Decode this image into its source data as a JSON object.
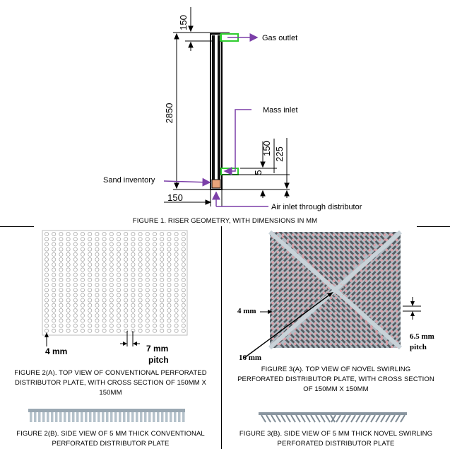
{
  "figure1": {
    "dim_top": "150",
    "dim_height": "2850",
    "dim_bottom_width": "150",
    "dim_150_right": "150",
    "dim_225_right": "225",
    "dim_5_right": "5",
    "label_gas_outlet": "Gas outlet",
    "label_mass_inlet": "Mass inlet",
    "label_sand_inventory": "Sand inventory",
    "label_air_inlet": "Air inlet through distributor",
    "caption": "FIGURE 1. RISER GEOMETRY, WITH DIMENSIONS IN MM"
  },
  "figure2a": {
    "label_4mm": "4 mm",
    "label_pitch_value": "7 mm",
    "label_pitch_word": "pitch",
    "caption_line1": "FIGURE 2(A). TOP VIEW OF CONVENTIONAL PERFORATED",
    "caption_line2": "DISTRIBUTOR PLATE, WITH CROSS SECTION OF 150MM X",
    "caption_line3": "150MM"
  },
  "figure2b": {
    "caption_line1": "FIGURE 2(B). SIDE VIEW OF 5 MM THICK CONVENTIONAL",
    "caption_line2": "PERFORATED DISTRIBUTOR PLATE"
  },
  "figure3a": {
    "label_4mm": "4 mm",
    "label_16mm": "16 mm",
    "label_pitch_value": "6.5 mm",
    "label_pitch_word": "pitch",
    "caption_line1": "FIGURE 3(A). TOP VIEW OF NOVEL SWIRLING",
    "caption_line2": "PERFORATED DISTRIBUTOR PLATE, WITH CROSS SECTION",
    "caption_line3": "OF 150MM X 150MM"
  },
  "figure3b": {
    "caption_line1": "FIGURE 3(B). SIDE VIEW OF 5 MM THICK NOVEL SWIRLING",
    "caption_line2": "PERFORATED DISTRIBUTOR PLATE"
  },
  "colors": {
    "arrow_purple": "#7b3fa8",
    "inlet_green": "#2ecc2e",
    "sand_orange": "#e8a47a",
    "plate_grey": "#b0bcc4",
    "hole_pink": "#d8a0a8",
    "channel_dark": "#555a60"
  }
}
